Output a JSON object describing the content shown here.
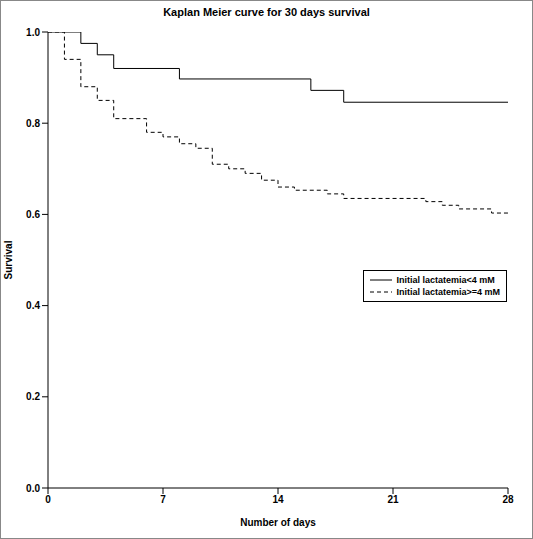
{
  "chart_data": {
    "type": "step",
    "title": "Kaplan Meier curve for 30 days survival",
    "x_label": "Number of days",
    "y_label": "Survival",
    "xlim": [
      0,
      28
    ],
    "xticks": [
      0,
      7,
      14,
      21,
      28
    ],
    "ylim": [
      0,
      1
    ],
    "yticks": [
      {
        "value": 0,
        "label": "0.0"
      },
      0.2,
      0.4,
      0.6,
      0.8,
      {
        "value": 1,
        "label": "1.0"
      }
    ],
    "grid": false,
    "legend": "right",
    "series": [
      {
        "name": "Initial lactatemia<4 mM",
        "color": "#000000",
        "line_style": "solid",
        "x": [
          0,
          2,
          3,
          4,
          8,
          16,
          18,
          28
        ],
        "values": [
          1.0,
          0.975,
          0.95,
          0.92,
          0.897,
          0.872,
          0.846,
          0.846
        ]
      },
      {
        "name": "Initial lactatemia>=4 mM",
        "color": "#000000",
        "line_style": "dashed",
        "x": [
          0,
          1,
          2,
          3,
          4,
          6,
          7,
          8,
          9,
          10,
          11,
          12,
          13,
          14,
          15,
          17,
          18,
          23,
          24,
          25,
          27,
          28
        ],
        "values": [
          1.0,
          0.94,
          0.88,
          0.85,
          0.81,
          0.78,
          0.77,
          0.755,
          0.745,
          0.71,
          0.7,
          0.69,
          0.675,
          0.66,
          0.653,
          0.645,
          0.635,
          0.628,
          0.62,
          0.612,
          0.603,
          0.603
        ]
      }
    ]
  }
}
